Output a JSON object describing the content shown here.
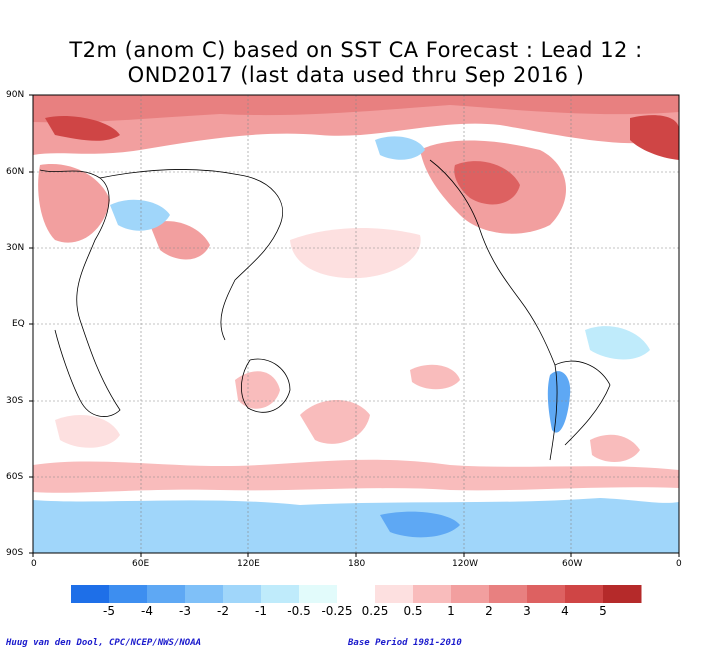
{
  "title_line1": "T2m (anom C) based on SST CA Forecast : Lead 12 :",
  "title_line2": "OND2017 (last data used thru Sep 2016 )",
  "lat_labels": [
    "90N",
    "60N",
    "30N",
    "EQ",
    "30S",
    "60S",
    "90S"
  ],
  "lon_labels": [
    "0",
    "60E",
    "120E",
    "180",
    "120W",
    "60W",
    "0"
  ],
  "colorbar": {
    "colors": [
      "#1e6fe8",
      "#3d8ef0",
      "#5ea8f4",
      "#7fc0f8",
      "#a0d6fa",
      "#bfebfb",
      "#e2fbfb",
      "#ffffff",
      "#fde0e0",
      "#f9bcbc",
      "#f29f9f",
      "#e88080",
      "#dd6161",
      "#cf4545",
      "#b52a2a"
    ],
    "labels": [
      "-5",
      "-4",
      "-3",
      "-2",
      "-1",
      "-0.5",
      "-0.25",
      "0.25",
      "0.5",
      "1",
      "2",
      "3",
      "4",
      "5"
    ]
  },
  "credit_left": "Huug van den Dool, CPC/NCEP/NWS/NOAA",
  "credit_right": "Base Period 1981-2010"
}
